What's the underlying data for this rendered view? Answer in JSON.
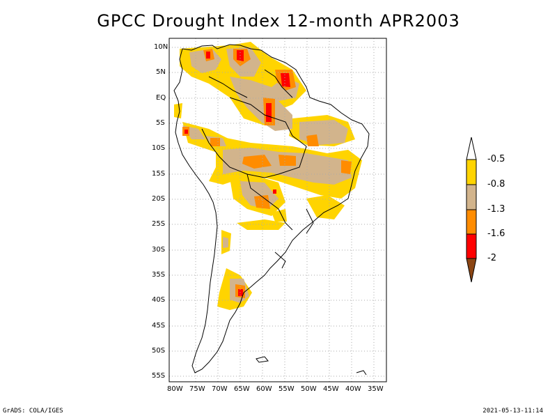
{
  "title": "GPCC Drought Index 12-month APR2003",
  "footer": {
    "left": "GrADS: COLA/IGES",
    "right": "2021-05-13-11:14"
  },
  "lat_ticks": [
    "10N",
    "5N",
    "EQ",
    "5S",
    "10S",
    "15S",
    "20S",
    "25S",
    "30S",
    "35S",
    "40S",
    "45S",
    "50S",
    "55S"
  ],
  "lon_ticks": [
    "80W",
    "75W",
    "70W",
    "65W",
    "60W",
    "55W",
    "50W",
    "45W",
    "40W",
    "35W"
  ],
  "legend": {
    "labels": [
      "-0.5",
      "-0.8",
      "-1.3",
      "-1.6",
      "-2"
    ],
    "colors": {
      "above": "#ffffff",
      "lvl1": "#ffd400",
      "lvl2": "#d2b48c",
      "lvl3": "#ff8c00",
      "lvl4": "#ff0000",
      "below": "#8b4513"
    }
  },
  "colors": {
    "grid": "#aaaaaa",
    "coast": "#000000"
  }
}
